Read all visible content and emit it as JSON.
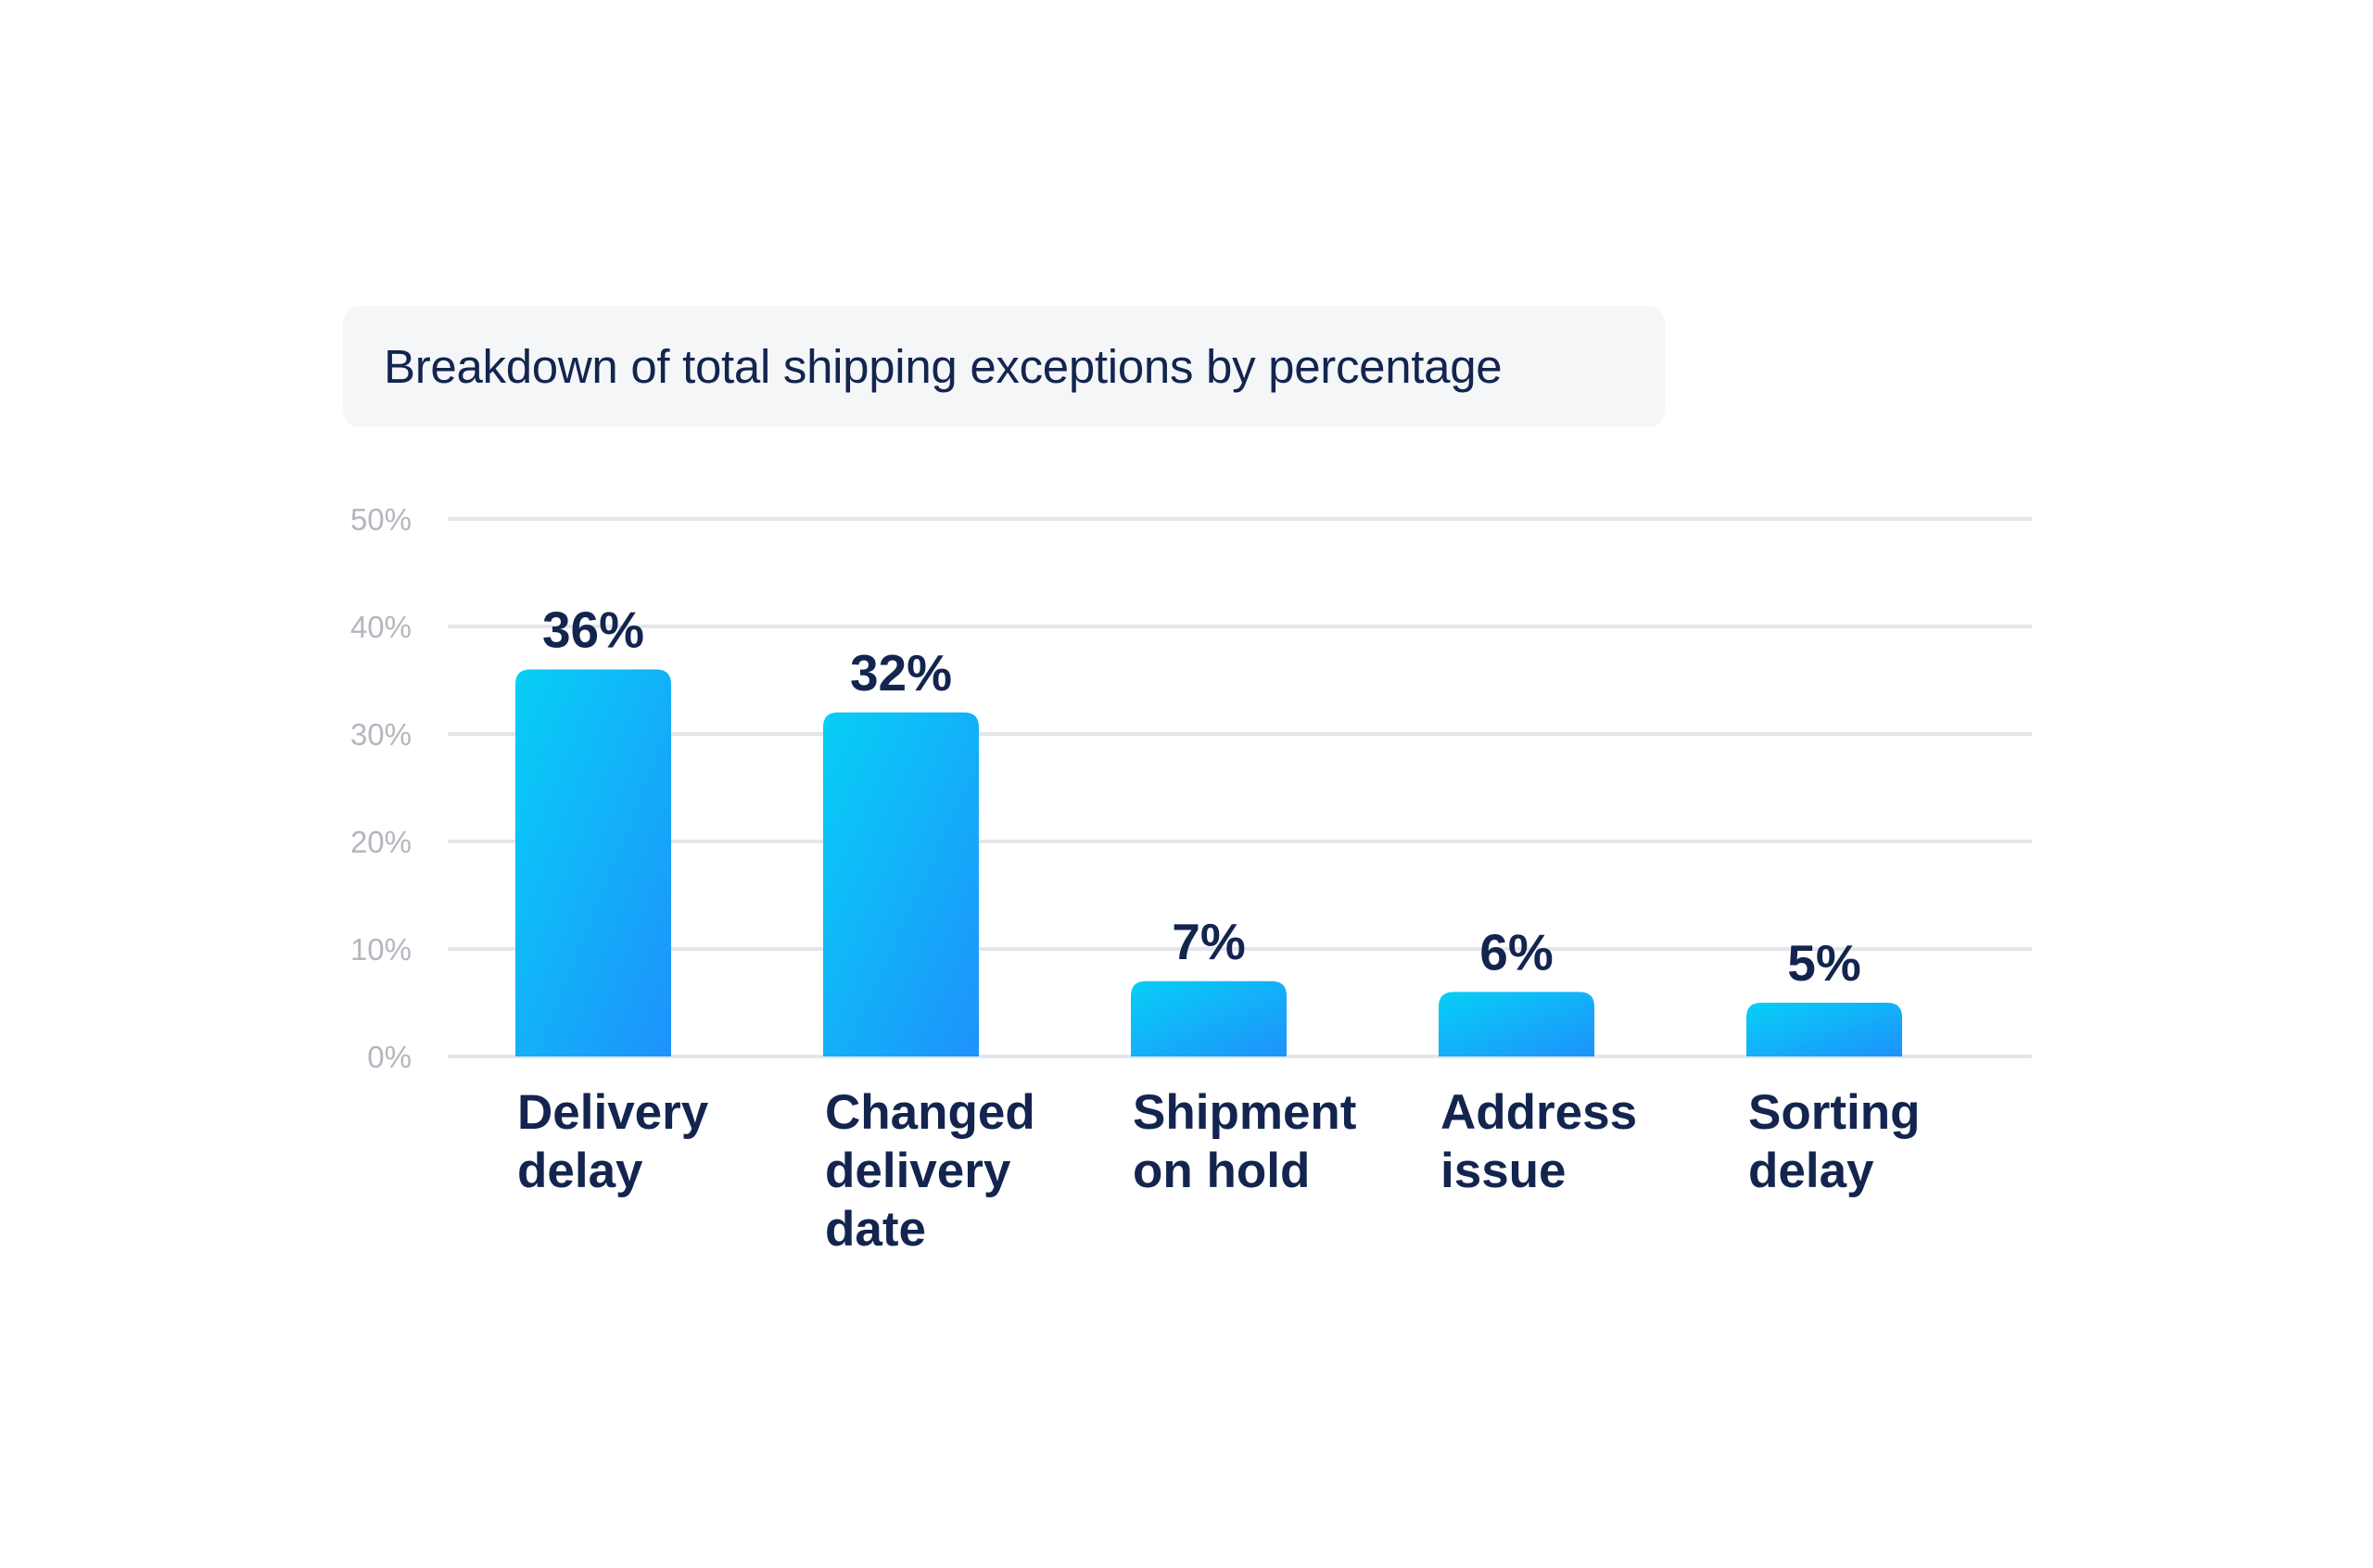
{
  "chart_data": {
    "type": "bar",
    "title": "Breakdown of total shipping exceptions by percentage",
    "categories": [
      [
        "Delivery",
        "delay"
      ],
      [
        "Changed",
        "delivery",
        "date"
      ],
      [
        "Shipment",
        "on hold"
      ],
      [
        "Address",
        "issue"
      ],
      [
        "Sorting",
        "delay"
      ]
    ],
    "values": [
      36,
      32,
      7,
      6,
      5
    ],
    "value_labels": [
      "36%",
      "32%",
      "7%",
      "6%",
      "5%"
    ],
    "ylim": [
      0,
      50
    ],
    "yticks": [
      0,
      10,
      20,
      30,
      40,
      50
    ],
    "ytick_labels": [
      "0%",
      "10%",
      "20%",
      "30%",
      "40%",
      "50%"
    ],
    "grid": true,
    "legend": "none",
    "colors": {
      "bar_top": "#07cff6",
      "bar_bottom": "#1a9bfa",
      "text": "#13254f",
      "grid": "#e3e6ea",
      "tick": "#b3b7be",
      "title_box": "#f5f6f8"
    }
  }
}
